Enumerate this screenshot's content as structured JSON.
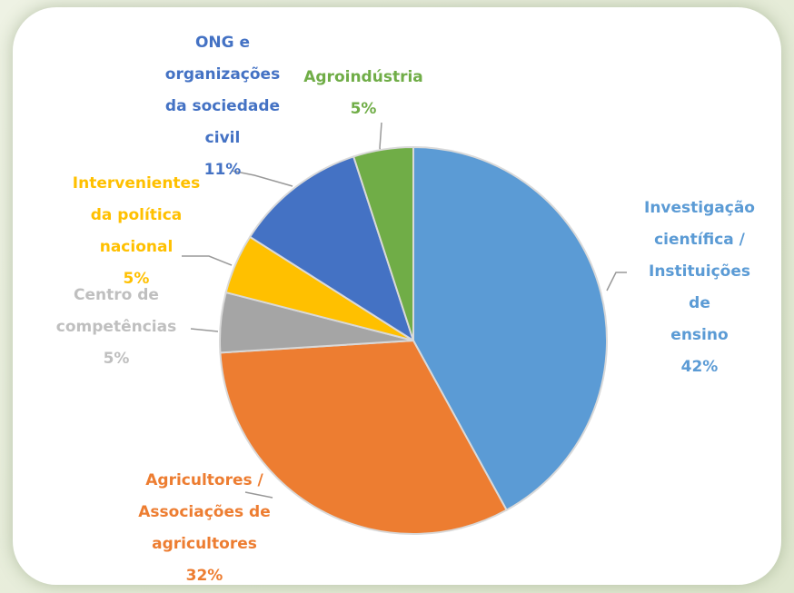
{
  "chart_data": {
    "type": "pie",
    "categories": [
      "Investigação\ncientífica /\nInstituições de\nensino",
      "Agricultores /\nAssociações de\nagricultores",
      "Centro de\ncompetências",
      "Intervenientes\nda política\nnacional",
      "ONG e\norganizações\nda sociedade\ncivil",
      "Agroindústria"
    ],
    "values": [
      42,
      32,
      5,
      5,
      11,
      5
    ],
    "value_labels": [
      "42%",
      "32%",
      "5%",
      "5%",
      "11%",
      "5%"
    ],
    "colors": [
      "#5b9bd5",
      "#ed7d31",
      "#a5a5a5",
      "#ffc000",
      "#4472c4",
      "#70ad47"
    ]
  }
}
